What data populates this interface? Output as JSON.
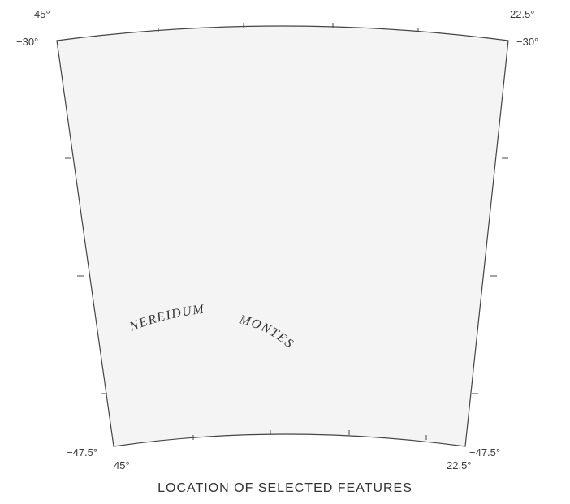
{
  "map": {
    "corner_labels": {
      "top_left_lon": "45°",
      "top_left_lat": "−30°",
      "top_right_lon": "22.5°",
      "top_right_lat": "−30°",
      "bottom_left_lat": "−47.5°",
      "bottom_left_lon": "45°",
      "bottom_right_lat": "−47.5°",
      "bottom_right_lon": "22.5°"
    },
    "features": {
      "nereidum": "NEREIDUM",
      "montes": "MONTES"
    },
    "colors": {
      "map_fill": "#f4f4f4",
      "border": "#444444",
      "text": "#333333"
    }
  },
  "caption": "LOCATION OF SELECTED FEATURES"
}
